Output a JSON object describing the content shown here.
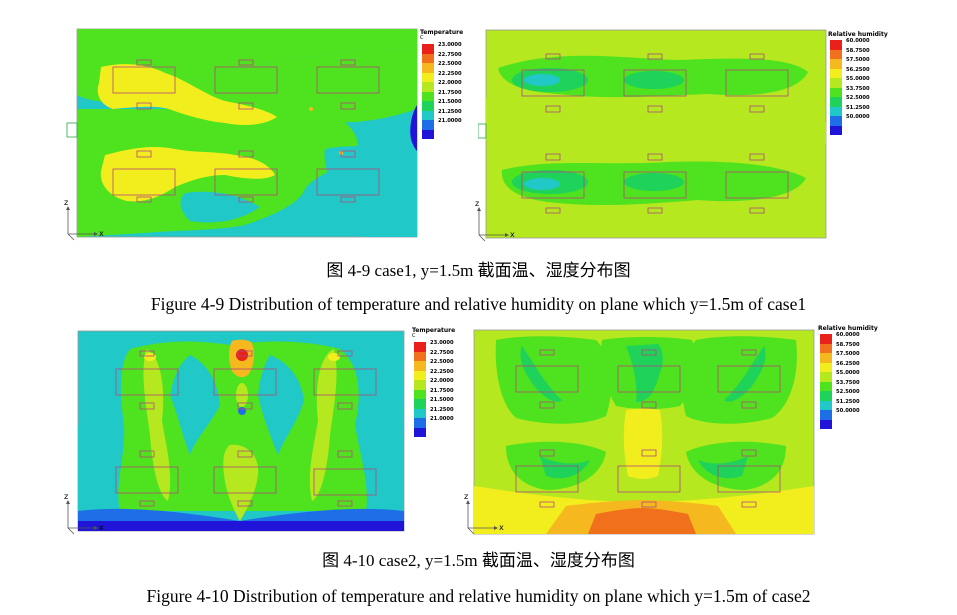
{
  "figures": [
    {
      "id": "fig-4-9",
      "caption_cn": "图 4-9  case1, y=1.5m 截面温、湿度分布图",
      "caption_en": "Figure 4-9 Distribution of temperature and relative humidity on plane which y=1.5m of case1",
      "temperature_legend": {
        "title": "Temperature",
        "unit": "C",
        "values": [
          "23.0000",
          "22.7500",
          "22.5000",
          "22.2500",
          "22.0000",
          "21.7500",
          "21.5000",
          "21.2500",
          "21.0000"
        ]
      },
      "humidity_legend": {
        "title": "Relative humidity",
        "values": [
          "60.0000",
          "58.7500",
          "57.5000",
          "56.2500",
          "55.0000",
          "53.7500",
          "52.5000",
          "51.2500",
          "50.0000"
        ]
      }
    },
    {
      "id": "fig-4-10",
      "caption_cn": "图 4-10  case2, y=1.5m 截面温、湿度分布图",
      "caption_en": "Figure 4-10 Distribution of temperature and relative humidity on plane which y=1.5m of case2",
      "temperature_legend": {
        "title": "Temperature",
        "unit": "C",
        "values": [
          "23.0000",
          "22.7500",
          "22.5000",
          "22.2500",
          "22.0000",
          "21.7500",
          "21.5000",
          "21.2500",
          "21.0000"
        ]
      },
      "humidity_legend": {
        "title": "Relative humidity",
        "values": [
          "60.0000",
          "58.7500",
          "57.5000",
          "56.2500",
          "55.0000",
          "53.7500",
          "52.5000",
          "51.2500",
          "50.0000"
        ]
      }
    }
  ],
  "axis_labels": {
    "x": "x",
    "z": "z"
  },
  "colors": {
    "scale": [
      "#e8221a",
      "#f0701c",
      "#f5b81e",
      "#f2ee1e",
      "#b5e81e",
      "#4fe21e",
      "#1ed25a",
      "#20c8c8",
      "#1e6ee8",
      "#2014d8"
    ],
    "frame": "#b0b0b0",
    "box_outline": "#b04a78",
    "background": "#ffffff"
  }
}
